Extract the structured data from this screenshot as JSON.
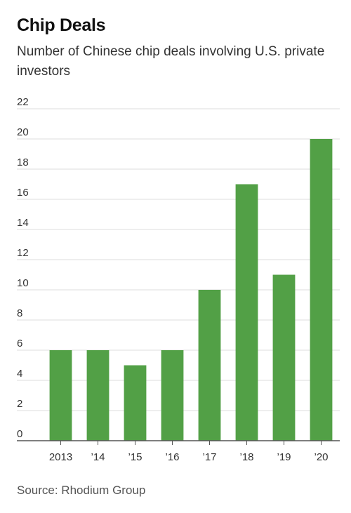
{
  "chart_data": {
    "type": "bar",
    "title": "Chip Deals",
    "subtitle": "Number of Chinese chip deals involving U.S. private investors",
    "categories": [
      "2013",
      "’14",
      "’15",
      "’16",
      "’17",
      "’18",
      "’19",
      "’20"
    ],
    "values": [
      6,
      6,
      5,
      6,
      10,
      17,
      11,
      20
    ],
    "ylim": [
      0,
      22
    ],
    "yticks": [
      0,
      2,
      4,
      6,
      8,
      10,
      12,
      14,
      16,
      18,
      20,
      22
    ],
    "grid": true,
    "bar_color": "#52a046",
    "source": "Source: Rhodium Group"
  }
}
